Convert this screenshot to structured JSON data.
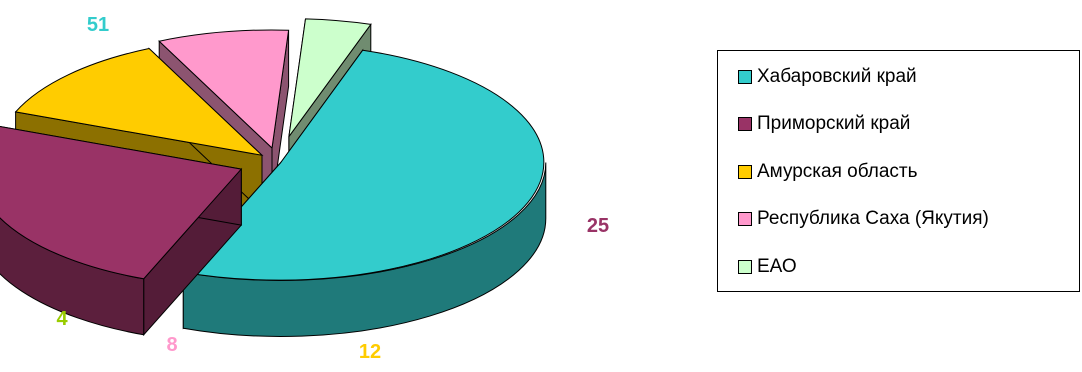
{
  "chart_data": {
    "type": "pie",
    "style": "3d-exploded",
    "title": "",
    "categories": [
      "Хабаровский край",
      "Приморский край",
      "Амурская область",
      "Республика Саха (Якутия)",
      "ЕАО"
    ],
    "values": [
      51,
      25,
      12,
      8,
      4
    ],
    "value_labels": [
      "51",
      "25",
      "12",
      "8",
      "4"
    ],
    "colors": [
      "#33CCCC",
      "#993366",
      "#FFCC00",
      "#FF99CC",
      "#CCFFCC"
    ],
    "label_colors": [
      "#33CCCC",
      "#993366",
      "#FFCC00",
      "#FF99CC",
      "#99CC00"
    ],
    "legend_position": "right"
  }
}
